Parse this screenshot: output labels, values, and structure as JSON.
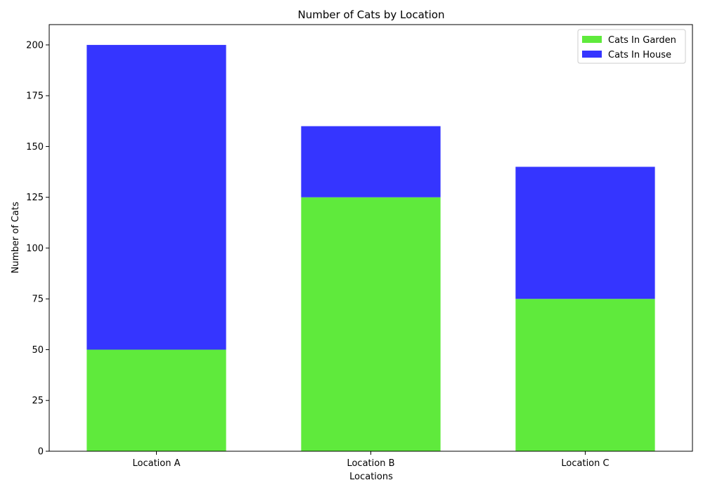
{
  "chart_data": {
    "type": "bar",
    "stacked": true,
    "title": "Number of Cats by Location",
    "xlabel": "Locations",
    "ylabel": "Number of Cats",
    "categories": [
      "Location A",
      "Location B",
      "Location C"
    ],
    "series": [
      {
        "name": "Cats In Garden",
        "values": [
          50,
          125,
          75
        ],
        "color": "#5fea3c"
      },
      {
        "name": "Cats In House",
        "values": [
          150,
          35,
          65
        ],
        "color": "#3535ff"
      }
    ],
    "ylim": [
      0,
      210
    ],
    "yticks": [
      0,
      25,
      50,
      75,
      100,
      125,
      150,
      175,
      200
    ],
    "grid": false,
    "legend_position": "top-right"
  }
}
